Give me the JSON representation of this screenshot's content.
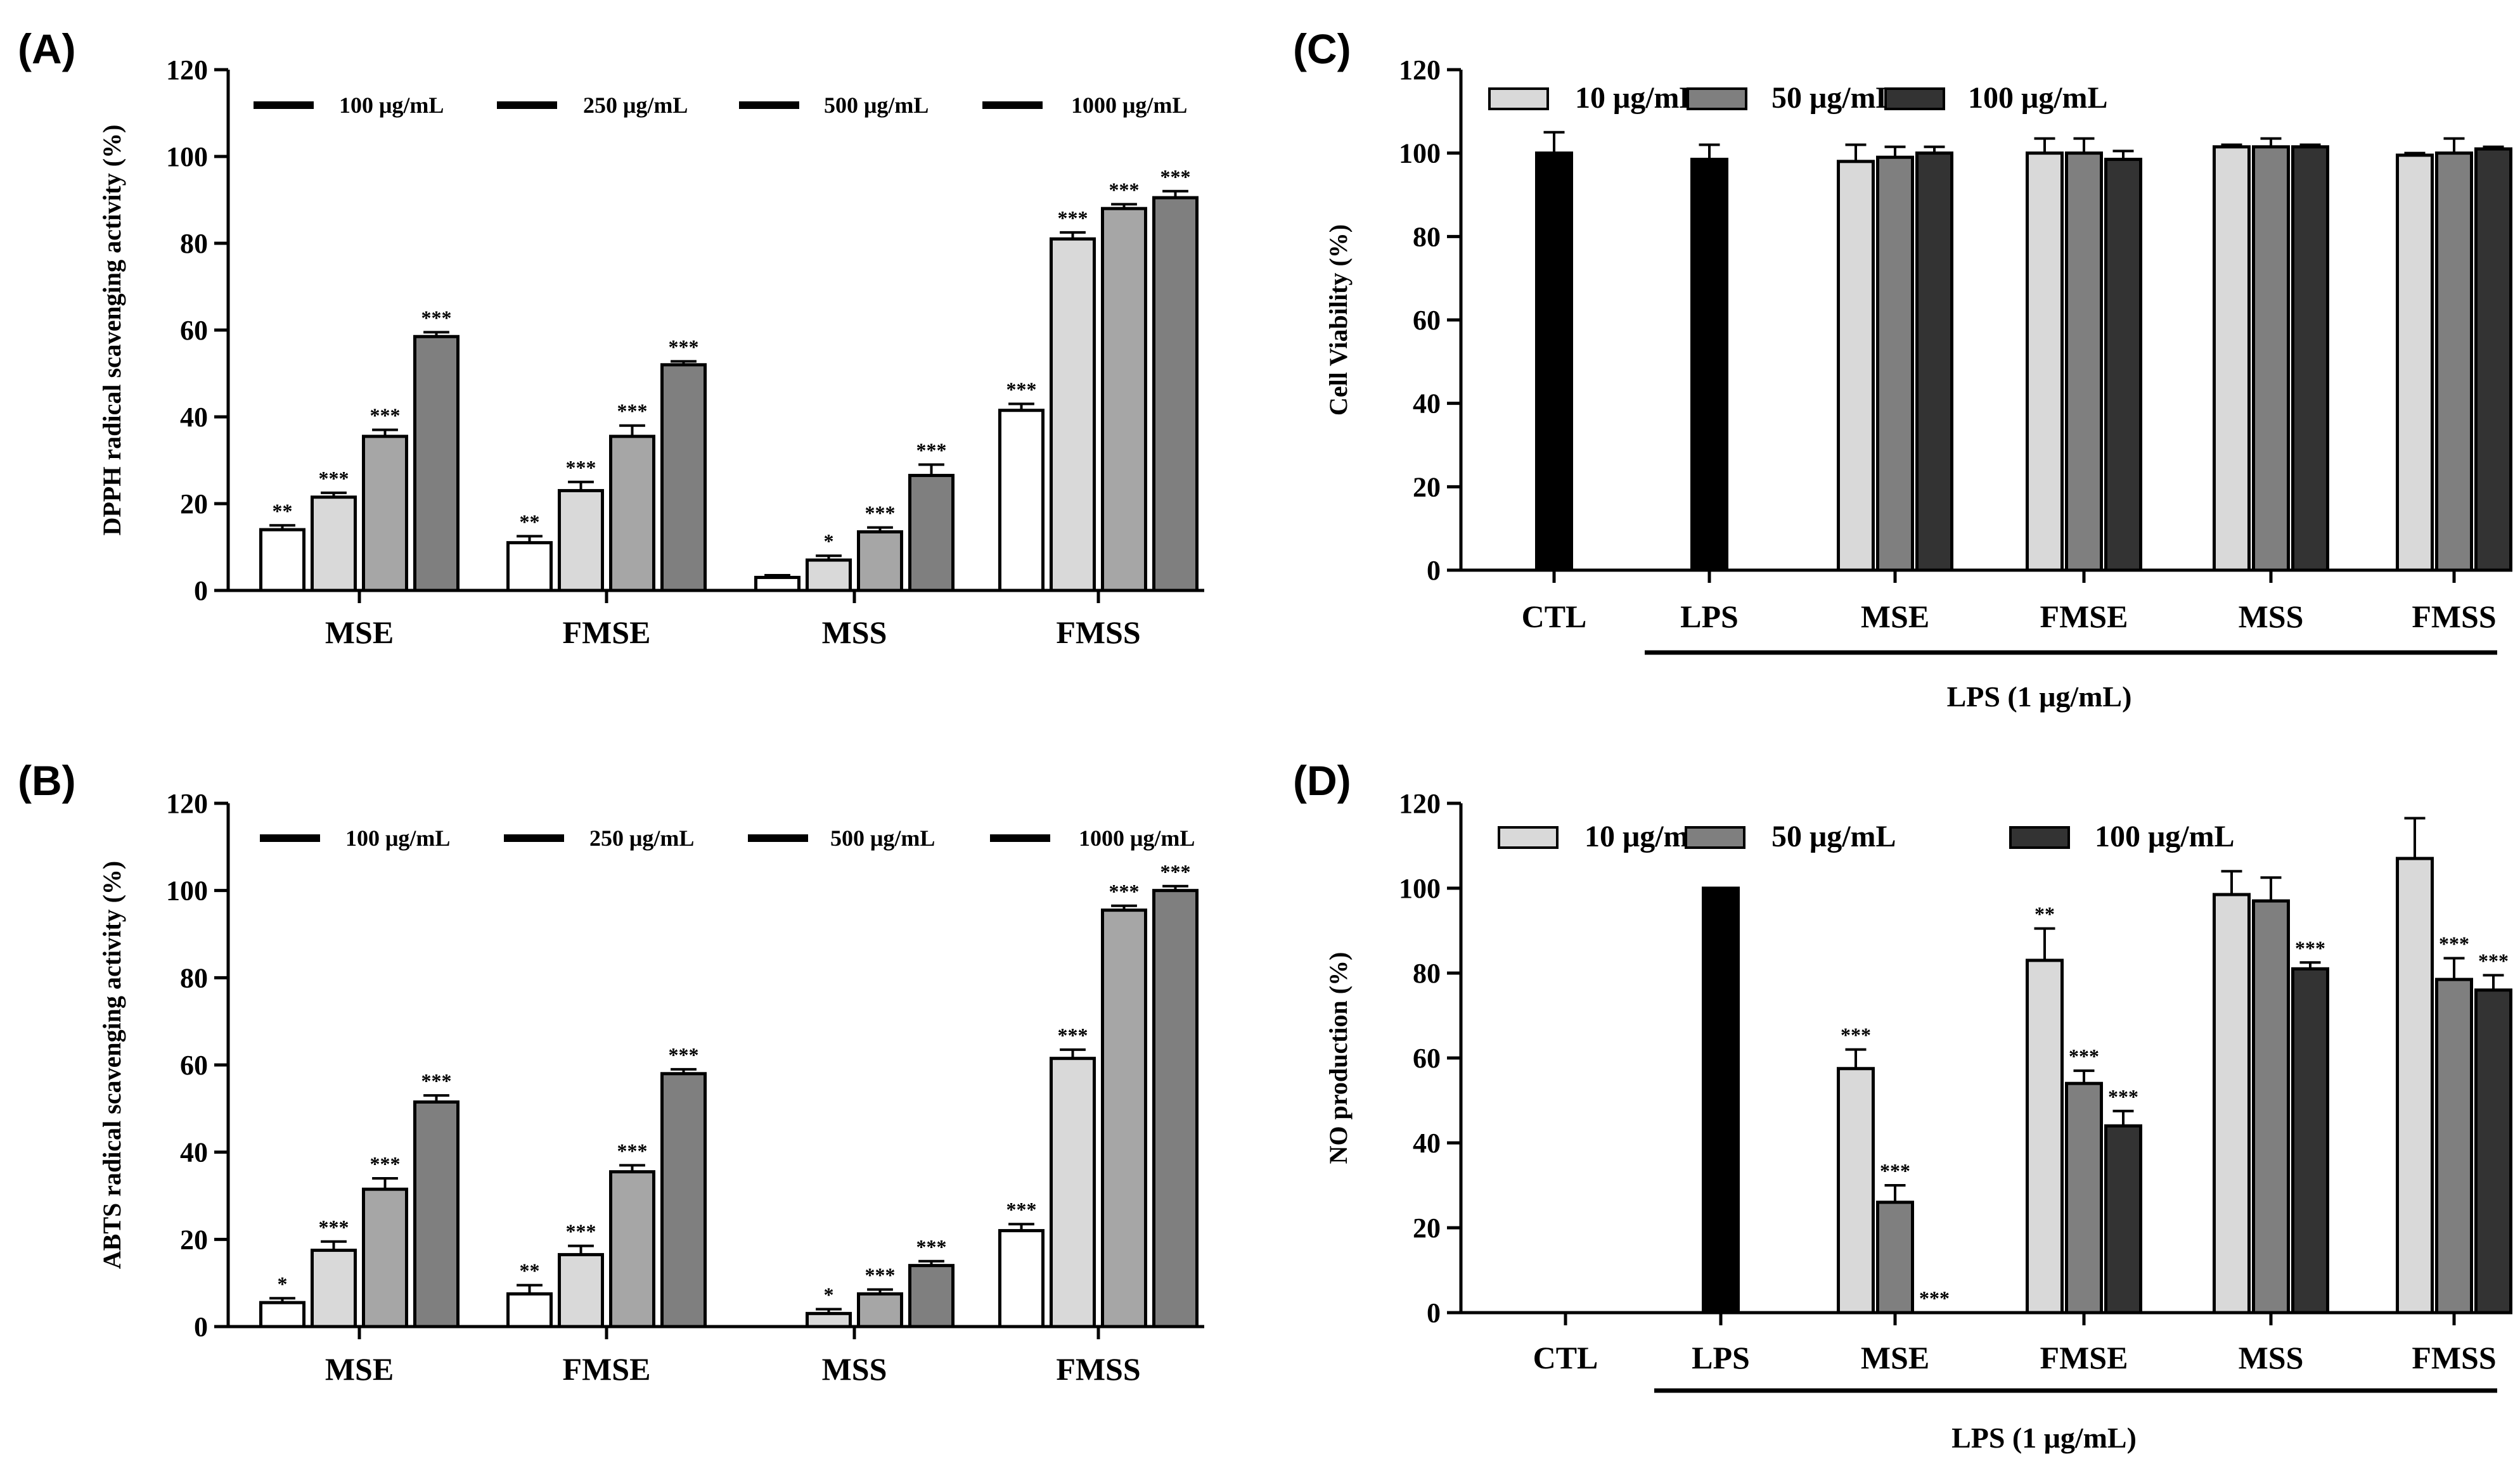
{
  "chart_data": [
    {
      "id": "A",
      "panel_label": "(A)",
      "type": "bar",
      "title": "",
      "xlabel": "",
      "ylabel": "DPPH radical scavenging activity (%)",
      "ylim": [
        0,
        120
      ],
      "yticks": [
        0,
        20,
        40,
        60,
        80,
        100,
        120
      ],
      "categories": [
        "MSE",
        "FMSE",
        "MSS",
        "FMSS"
      ],
      "legend_position": "top",
      "series": [
        {
          "name": "100 μg/mL",
          "color": "#ffffff",
          "values": [
            14,
            11,
            3,
            41.5
          ],
          "errors": [
            1,
            1.5,
            0.5,
            1.5
          ],
          "sig": [
            "**",
            "**",
            "",
            "***"
          ]
        },
        {
          "name": "250 μg/mL",
          "color": "#d9d9d9",
          "values": [
            21.5,
            23,
            7,
            81
          ],
          "errors": [
            1,
            2,
            1,
            1.5
          ],
          "sig": [
            "***",
            "***",
            "*",
            "***"
          ]
        },
        {
          "name": "500 μg/mL",
          "color": "#a6a6a6",
          "values": [
            35.5,
            35.5,
            13.5,
            88
          ],
          "errors": [
            1.5,
            2.5,
            1,
            1
          ],
          "sig": [
            "***",
            "***",
            "***",
            "***"
          ]
        },
        {
          "name": "1000 μg/mL",
          "color": "#7f7f7f",
          "values": [
            58.5,
            52,
            26.5,
            90.5
          ],
          "errors": [
            1,
            0.8,
            2.5,
            1.5
          ],
          "sig": [
            "***",
            "***",
            "***",
            "***"
          ]
        }
      ]
    },
    {
      "id": "B",
      "panel_label": "(B)",
      "type": "bar",
      "title": "",
      "xlabel": "",
      "ylabel": "ABTS radical scavenging activity (%)",
      "ylim": [
        0,
        120
      ],
      "yticks": [
        0,
        20,
        40,
        60,
        80,
        100,
        120
      ],
      "categories": [
        "MSE",
        "FMSE",
        "MSS",
        "FMSS"
      ],
      "legend_position": "top",
      "series": [
        {
          "name": "100 μg/mL",
          "color": "#ffffff",
          "values": [
            5.5,
            7.5,
            0,
            22
          ],
          "errors": [
            1,
            2,
            0,
            1.5
          ],
          "sig": [
            "*",
            "**",
            "",
            "***"
          ]
        },
        {
          "name": "250 μg/mL",
          "color": "#d9d9d9",
          "values": [
            17.5,
            16.5,
            3,
            61.5
          ],
          "errors": [
            2,
            2,
            1,
            2
          ],
          "sig": [
            "***",
            "***",
            "*",
            "***"
          ]
        },
        {
          "name": "500 μg/mL",
          "color": "#a6a6a6",
          "values": [
            31.5,
            35.5,
            7.5,
            95.5
          ],
          "errors": [
            2.5,
            1.5,
            1,
            1
          ],
          "sig": [
            "***",
            "***",
            "***",
            "***"
          ]
        },
        {
          "name": "1000 μg/mL",
          "color": "#7f7f7f",
          "values": [
            51.5,
            58,
            14,
            100
          ],
          "errors": [
            1.5,
            1,
            1,
            1
          ],
          "sig": [
            "***",
            "***",
            "***",
            "***"
          ]
        }
      ]
    },
    {
      "id": "C",
      "panel_label": "(C)",
      "type": "bar",
      "title": "",
      "xlabel": "",
      "ylabel": "Cell Viability (%)",
      "ylim": [
        0,
        120
      ],
      "yticks": [
        0,
        20,
        40,
        60,
        80,
        100,
        120
      ],
      "categories": [
        "CTL",
        "LPS",
        "MSE",
        "FMSE",
        "MSS",
        "FMSS"
      ],
      "group_label": "LPS (1 μg/mL)",
      "legend_position": "top-left",
      "control_color": "#000000",
      "controls": [
        {
          "category": "CTL",
          "value": 100,
          "error": 5
        },
        {
          "category": "LPS",
          "value": 98.5,
          "error": 3.5
        }
      ],
      "series": [
        {
          "name": "10 μg/mL",
          "color": "#d9d9d9",
          "values": [
            null,
            null,
            98,
            100,
            101.5,
            99.5
          ],
          "errors": [
            0,
            0,
            4,
            3.5,
            0.5,
            0.5
          ],
          "sig": []
        },
        {
          "name": "50 μg/mL",
          "color": "#7f7f7f",
          "values": [
            null,
            null,
            99,
            100,
            101.5,
            100
          ],
          "errors": [
            0,
            0,
            2.5,
            3.5,
            2,
            3.5
          ],
          "sig": []
        },
        {
          "name": "100 μg/mL",
          "color": "#333333",
          "values": [
            null,
            null,
            100,
            98.5,
            101.5,
            101
          ],
          "errors": [
            0,
            0,
            1.5,
            2,
            0.5,
            0.5
          ],
          "sig": []
        }
      ]
    },
    {
      "id": "D",
      "panel_label": "(D)",
      "type": "bar",
      "title": "",
      "xlabel": "",
      "ylabel": "NO production (%)",
      "ylim": [
        0,
        120
      ],
      "yticks": [
        0,
        20,
        40,
        60,
        80,
        100,
        120
      ],
      "categories": [
        "CTL",
        "LPS",
        "MSE",
        "FMSE",
        "MSS",
        "FMSS"
      ],
      "group_label": "LPS (1 μg/mL)",
      "legend_position": "top-left",
      "control_color": "#000000",
      "controls": [
        {
          "category": "CTL",
          "value": 0,
          "error": 0
        },
        {
          "category": "LPS",
          "value": 100,
          "error": 0
        }
      ],
      "series": [
        {
          "name": "10 μg/mL",
          "color": "#d9d9d9",
          "values": [
            null,
            null,
            57.5,
            83,
            98.5,
            107
          ],
          "errors": [
            0,
            0,
            4.5,
            7.5,
            5.5,
            9.5
          ],
          "sig": [
            "",
            "",
            "***",
            "**",
            "",
            ""
          ]
        },
        {
          "name": "50 μg/mL",
          "color": "#7f7f7f",
          "values": [
            null,
            null,
            26,
            54,
            97,
            78.5
          ],
          "errors": [
            0,
            0,
            4,
            3,
            5.5,
            5
          ],
          "sig": [
            "",
            "",
            "***",
            "***",
            "",
            "***"
          ]
        },
        {
          "name": "100 μg/mL",
          "color": "#333333",
          "values": [
            null,
            null,
            0,
            44,
            81,
            76
          ],
          "errors": [
            0,
            0,
            0,
            3.5,
            1.5,
            3.5
          ],
          "sig": [
            "",
            "",
            "***",
            "***",
            "***",
            "***"
          ]
        }
      ]
    }
  ]
}
